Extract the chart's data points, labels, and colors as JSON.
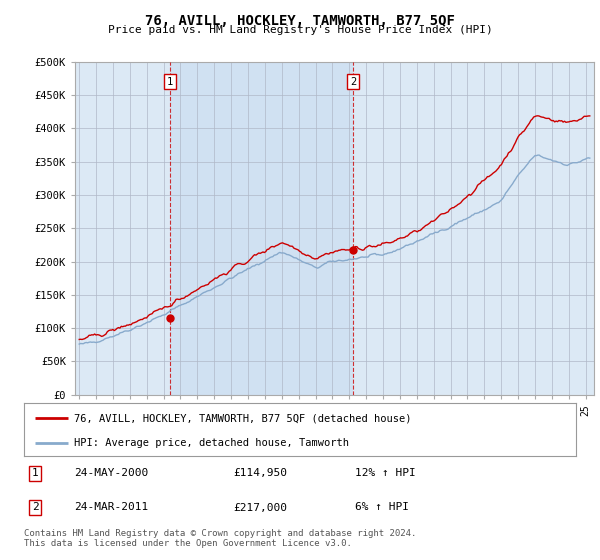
{
  "title": "76, AVILL, HOCKLEY, TAMWORTH, B77 5QF",
  "subtitle": "Price paid vs. HM Land Registry's House Price Index (HPI)",
  "ylim": [
    0,
    500000
  ],
  "xlim_start": 1994.75,
  "xlim_end": 2025.5,
  "background_color": "#dce9f5",
  "plot_bg": "#dce9f5",
  "shade_color": "#c8ddf0",
  "red_color": "#cc0000",
  "blue_color": "#88aacc",
  "marker1_x": 2000.39,
  "marker1_y": 114950,
  "marker2_x": 2011.23,
  "marker2_y": 217000,
  "legend_label1": "76, AVILL, HOCKLEY, TAMWORTH, B77 5QF (detached house)",
  "legend_label2": "HPI: Average price, detached house, Tamworth",
  "footnote1": "Contains HM Land Registry data © Crown copyright and database right 2024.",
  "footnote2": "This data is licensed under the Open Government Licence v3.0.",
  "table": [
    {
      "num": "1",
      "date": "24-MAY-2000",
      "price": "£114,950",
      "hpi": "12% ↑ HPI"
    },
    {
      "num": "2",
      "date": "24-MAR-2011",
      "price": "£217,000",
      "hpi": "6% ↑ HPI"
    }
  ]
}
